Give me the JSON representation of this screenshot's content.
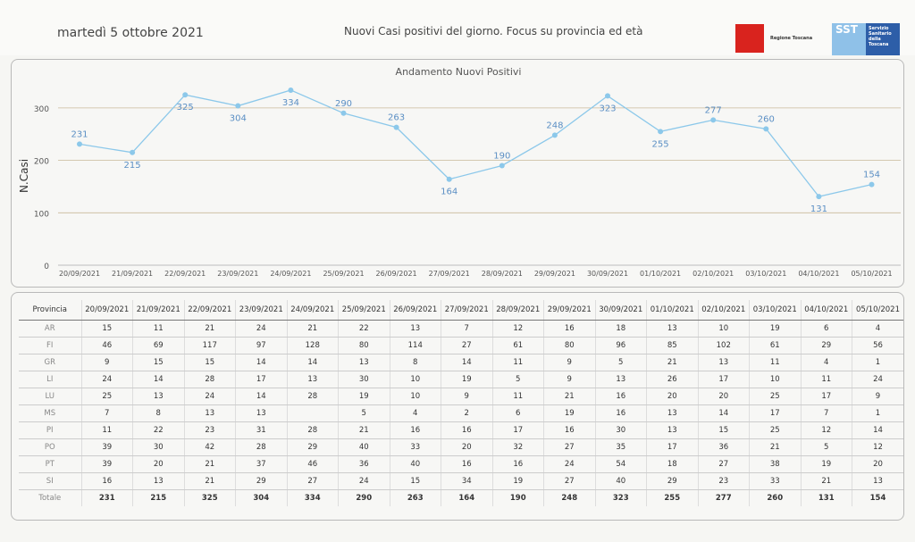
{
  "header": {
    "date": "martedì 5 ottobre 2021",
    "title": "Nuovi Casi positivi del giorno. Focus su provincia ed età",
    "logo_regione": "Regione Toscana",
    "logo_sst": "SST",
    "logo_sst_text": "Servizio Sanitario della Toscana"
  },
  "colors": {
    "line": "#8cc8ea",
    "label": "#5b8fc4",
    "grid": "#c9b89a"
  },
  "chart_data": {
    "type": "line",
    "title": "Andamento Nuovi Positivi",
    "xlabel": "",
    "ylabel": "N.Casi",
    "ylim": [
      0,
      350
    ],
    "yticks": [
      0,
      100,
      200,
      300
    ],
    "categories": [
      "20/09/2021",
      "21/09/2021",
      "22/09/2021",
      "23/09/2021",
      "24/09/2021",
      "25/09/2021",
      "26/09/2021",
      "27/09/2021",
      "28/09/2021",
      "29/09/2021",
      "30/09/2021",
      "01/10/2021",
      "02/10/2021",
      "03/10/2021",
      "04/10/2021",
      "05/10/2021"
    ],
    "values": [
      231,
      215,
      325,
      304,
      334,
      290,
      263,
      164,
      190,
      248,
      323,
      255,
      277,
      260,
      131,
      154
    ]
  },
  "table": {
    "header": "Provincia",
    "rows": [
      {
        "name": "AR",
        "values": [
          "15",
          "11",
          "21",
          "24",
          "21",
          "22",
          "13",
          "7",
          "12",
          "16",
          "18",
          "13",
          "10",
          "19",
          "6",
          "4"
        ]
      },
      {
        "name": "FI",
        "values": [
          "46",
          "69",
          "117",
          "97",
          "128",
          "80",
          "114",
          "27",
          "61",
          "80",
          "96",
          "85",
          "102",
          "61",
          "29",
          "56"
        ]
      },
      {
        "name": "GR",
        "values": [
          "9",
          "15",
          "15",
          "14",
          "14",
          "13",
          "8",
          "14",
          "11",
          "9",
          "5",
          "21",
          "13",
          "11",
          "4",
          "1"
        ]
      },
      {
        "name": "LI",
        "values": [
          "24",
          "14",
          "28",
          "17",
          "13",
          "30",
          "10",
          "19",
          "5",
          "9",
          "13",
          "26",
          "17",
          "10",
          "11",
          "24"
        ]
      },
      {
        "name": "LU",
        "values": [
          "25",
          "13",
          "24",
          "14",
          "28",
          "19",
          "10",
          "9",
          "11",
          "21",
          "16",
          "20",
          "20",
          "25",
          "17",
          "9"
        ]
      },
      {
        "name": "MS",
        "values": [
          "7",
          "8",
          "13",
          "13",
          "",
          "5",
          "4",
          "2",
          "6",
          "19",
          "16",
          "13",
          "14",
          "17",
          "7",
          "1"
        ]
      },
      {
        "name": "PI",
        "values": [
          "11",
          "22",
          "23",
          "31",
          "28",
          "21",
          "16",
          "16",
          "17",
          "16",
          "30",
          "13",
          "15",
          "25",
          "12",
          "14"
        ]
      },
      {
        "name": "PO",
        "values": [
          "39",
          "30",
          "42",
          "28",
          "29",
          "40",
          "33",
          "20",
          "32",
          "27",
          "35",
          "17",
          "36",
          "21",
          "5",
          "12"
        ]
      },
      {
        "name": "PT",
        "values": [
          "39",
          "20",
          "21",
          "37",
          "46",
          "36",
          "40",
          "16",
          "16",
          "24",
          "54",
          "18",
          "27",
          "38",
          "19",
          "20"
        ]
      },
      {
        "name": "SI",
        "values": [
          "16",
          "13",
          "21",
          "29",
          "27",
          "24",
          "15",
          "34",
          "19",
          "27",
          "40",
          "29",
          "23",
          "33",
          "21",
          "13"
        ]
      }
    ],
    "total_label": "Totale",
    "totals": [
      "231",
      "215",
      "325",
      "304",
      "334",
      "290",
      "263",
      "164",
      "190",
      "248",
      "323",
      "255",
      "277",
      "260",
      "131",
      "154"
    ]
  }
}
